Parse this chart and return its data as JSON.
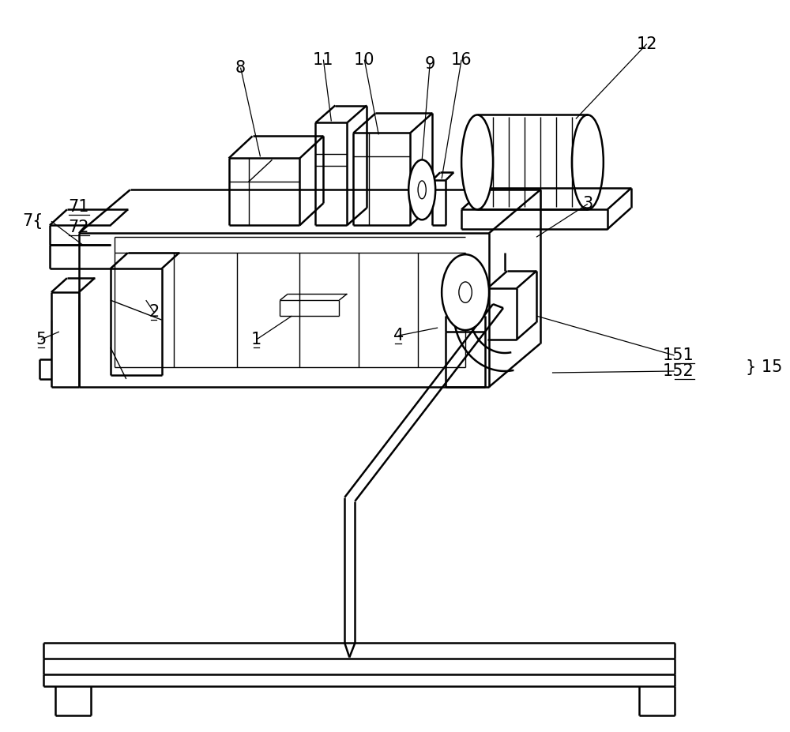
{
  "bg_color": "#ffffff",
  "line_color": "#000000",
  "lw": 1.8,
  "tlw": 1.0,
  "figw": 10.0,
  "figh": 9.27,
  "dpi": 100
}
